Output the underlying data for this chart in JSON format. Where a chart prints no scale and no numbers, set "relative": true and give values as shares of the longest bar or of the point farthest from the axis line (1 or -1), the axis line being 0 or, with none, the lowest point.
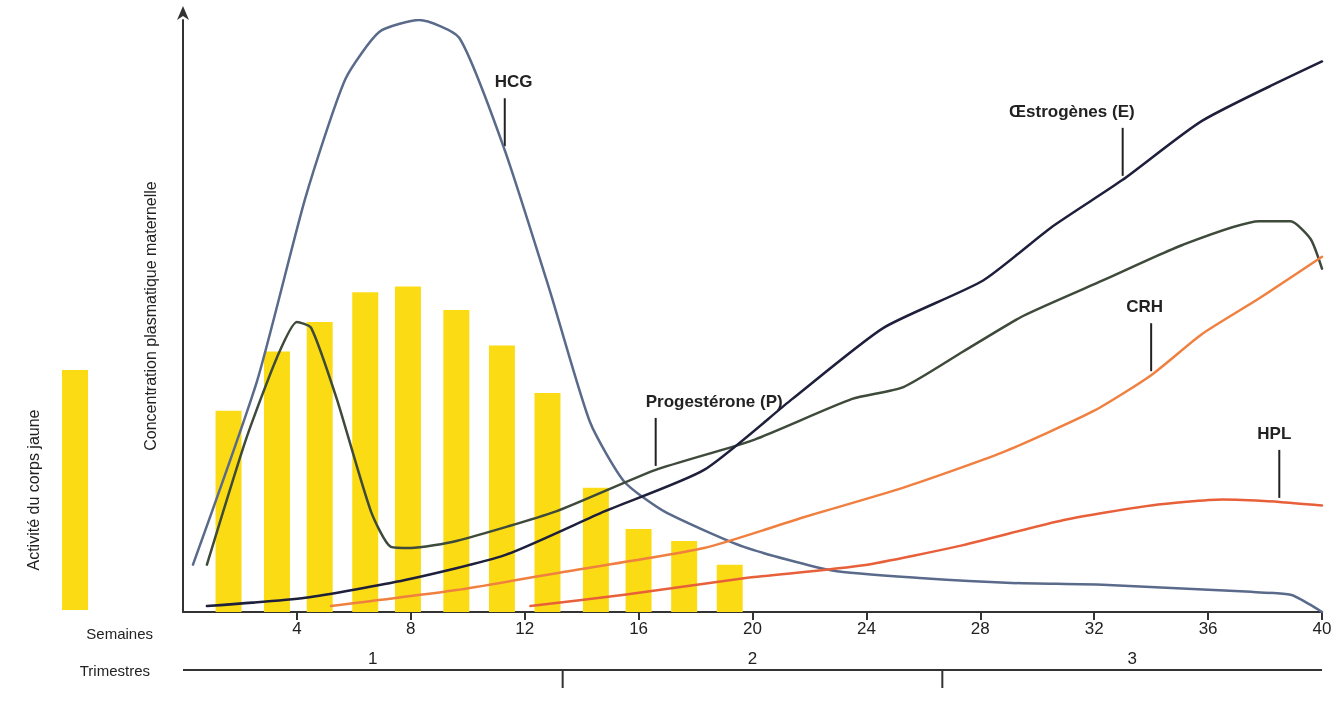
{
  "chart_data": {
    "type": "line",
    "relative": true,
    "xlabel": "Semaines",
    "ylabel": "Concentration plasmatique maternelle",
    "xlim": [
      0,
      40
    ],
    "xticks": [
      4,
      8,
      12,
      16,
      20,
      24,
      28,
      32,
      36,
      40
    ],
    "grid": false,
    "legend": "left",
    "marker": "none",
    "line_style": "solid",
    "series": [
      {
        "name": "Activité du corps jaune",
        "type": "bar",
        "color": "#fbdc14",
        "x": [
          1.6,
          3.3,
          4.8,
          6.4,
          7.9,
          9.6,
          11.2,
          12.8,
          14.5,
          16.0,
          17.6,
          19.2
        ],
        "values": [
          0.34,
          0.44,
          0.49,
          0.54,
          0.55,
          0.51,
          0.45,
          0.37,
          0.21,
          0.14,
          0.12,
          0.08
        ]
      },
      {
        "color": "#5a6a8a",
        "x": [
          0.35,
          2.6,
          4.3,
          5.7,
          6.9,
          8.3,
          9.7,
          11.3,
          12.9,
          14.3,
          15.5,
          16.9,
          19.7,
          22.8,
          26,
          29.1,
          32.3,
          37.5,
          38.9,
          39.6,
          40
        ],
        "values": [
          0.08,
          0.39,
          0.7,
          0.9,
          0.98,
          1,
          0.97,
          0.78,
          0.54,
          0.32,
          0.22,
          0.17,
          0.11,
          0.07,
          0.057,
          0.049,
          0.046,
          0.034,
          0.029,
          0.012,
          0
        ]
      },
      {
        "color": "#3e4a3a",
        "x": [
          0.84,
          2.2,
          3.3,
          4.0,
          4.5,
          5.4,
          6.6,
          7.3,
          8.0,
          9.6,
          13.1,
          16.6,
          20,
          23.5,
          25.3,
          27.4,
          29.5,
          32.3,
          35.1,
          37.8,
          38.9,
          39.6,
          40
        ],
        "values": [
          0.08,
          0.29,
          0.43,
          0.49,
          0.48,
          0.36,
          0.17,
          0.11,
          0.108,
          0.12,
          0.17,
          0.24,
          0.29,
          0.36,
          0.38,
          0.44,
          0.5,
          0.56,
          0.62,
          0.66,
          0.66,
          0.63,
          0.58
        ]
      },
      {
        "color": "#1e1f3a",
        "x": [
          0.84,
          4.3,
          7.8,
          11.3,
          14.8,
          18.3,
          21.4,
          24.6,
          28.1,
          30.5,
          33,
          35.8,
          40
        ],
        "values": [
          0.01,
          0.024,
          0.054,
          0.096,
          0.17,
          0.24,
          0.36,
          0.48,
          0.56,
          0.65,
          0.73,
          0.83,
          0.93
        ]
      },
      {
        "color": "#f08040",
        "x": [
          5.2,
          9.6,
          13.4,
          18.3,
          21.8,
          25.3,
          28.8,
          32,
          34,
          35.8,
          37.8,
          40
        ],
        "values": [
          0.01,
          0.037,
          0.068,
          0.108,
          0.16,
          0.21,
          0.27,
          0.34,
          0.4,
          0.47,
          0.53,
          0.6
        ]
      },
      {
        "color": "#e8603a",
        "x": [
          12.2,
          15.5,
          19.7,
          23.9,
          27.4,
          30.9,
          34,
          36.5,
          38.5,
          40
        ],
        "values": [
          0.01,
          0.029,
          0.057,
          0.079,
          0.113,
          0.155,
          0.18,
          0.19,
          0.186,
          0.18
        ]
      }
    ],
    "annotations": [
      "Trimestres",
      "1",
      "2",
      "3",
      {
        "text": "HCG",
        "x": 11.3,
        "y": 0.78
      },
      {
        "text": "Progestérone (P)",
        "x": 16.6,
        "y": 0.24
      },
      {
        "text": "Œstrogènes (E)",
        "x": 33,
        "y": 0.73
      },
      {
        "text": "CRH",
        "x": 34,
        "y": 0.4
      },
      {
        "text": "HPL",
        "x": 38.5,
        "y": 0.186
      }
    ]
  }
}
